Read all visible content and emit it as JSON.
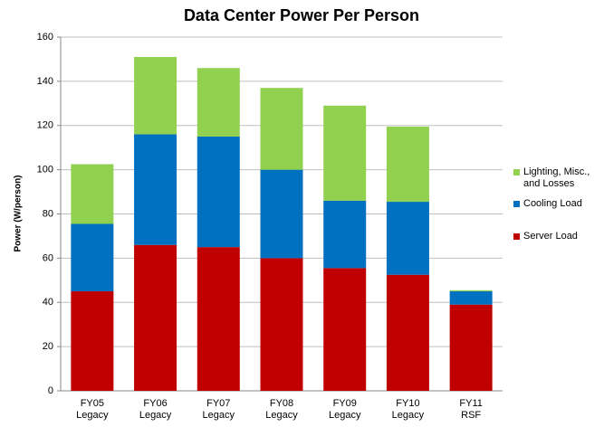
{
  "chart_data": {
    "type": "stacked-bar",
    "title": "Data Center Power Per Person",
    "y_label": "Power (W/person)",
    "categories": [
      [
        "FY05",
        "Legacy"
      ],
      [
        "FY06",
        "Legacy"
      ],
      [
        "FY07",
        "Legacy"
      ],
      [
        "FY08",
        "Legacy"
      ],
      [
        "FY09",
        "Legacy"
      ],
      [
        "FY10",
        "Legacy"
      ],
      [
        "FY11",
        "RSF"
      ]
    ],
    "series": [
      {
        "name": "Server Load",
        "color": "#c00000",
        "values": [
          45,
          66,
          65,
          60,
          55.5,
          52.5,
          39
        ]
      },
      {
        "name": "Cooling Load",
        "color": "#0070c0",
        "values": [
          30.5,
          50,
          50,
          40,
          30.5,
          33,
          6
        ]
      },
      {
        "name": "Lighting, Misc., and Losses",
        "color": "#92d050",
        "values": [
          27,
          35,
          31,
          37,
          43,
          34,
          0.5
        ]
      }
    ],
    "ylim": [
      0,
      160
    ],
    "yticks": [
      0,
      20,
      40,
      60,
      80,
      100,
      120,
      140,
      160
    ],
    "grid": true
  }
}
